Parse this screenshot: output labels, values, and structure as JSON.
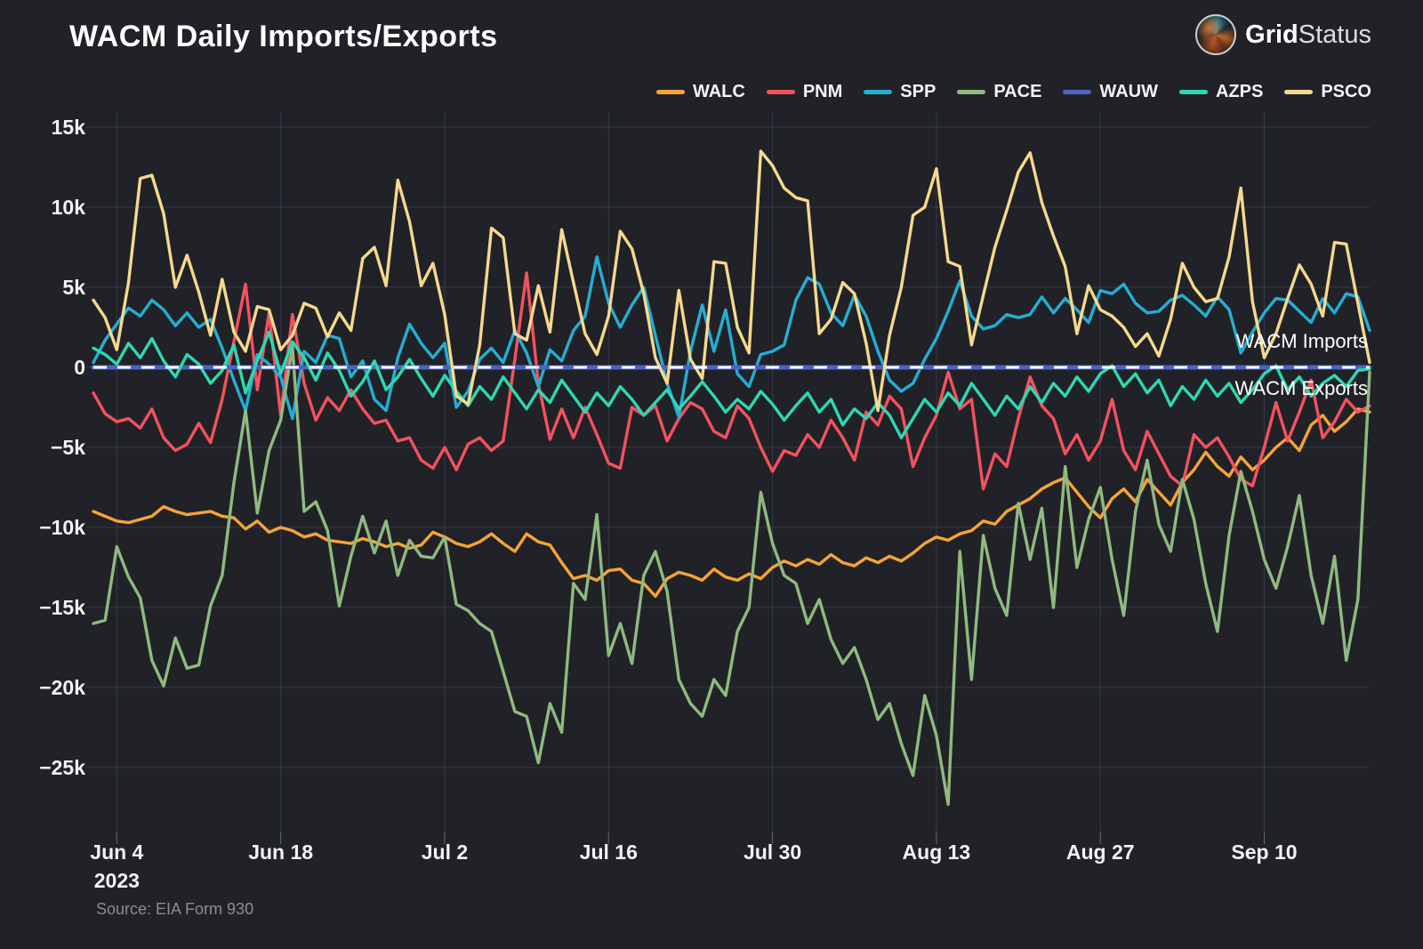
{
  "header": {
    "logo_bold": "Grid",
    "logo_light": "Status"
  },
  "annotations": {
    "imports": "WACM Imports",
    "exports": "WACM Exports"
  },
  "source": "Source: EIA Form 930",
  "chart_data": {
    "type": "line",
    "title": "WACM Daily Imports/Exports",
    "xlabel": "",
    "ylabel": "",
    "grid": true,
    "legend_position": "top-right",
    "background": "#212227",
    "x_start_date": "2023-06-02",
    "x_end_date": "2023-09-19",
    "ylim_k": [
      -29,
      16
    ],
    "y_unit_suffix": "k",
    "y_ticks": [
      {
        "label": "15k",
        "value_k": 15
      },
      {
        "label": "10k",
        "value_k": 10
      },
      {
        "label": "5k",
        "value_k": 5
      },
      {
        "label": "0",
        "value_k": 0
      },
      {
        "label": "−5k",
        "value_k": -5
      },
      {
        "label": "−10k",
        "value_k": -10
      },
      {
        "label": "−15k",
        "value_k": -15
      },
      {
        "label": "−20k",
        "value_k": -20
      },
      {
        "label": "−25k",
        "value_k": -25
      }
    ],
    "x_ticks": [
      {
        "day_index": 2,
        "label": "Jun 4",
        "sub": "2023"
      },
      {
        "day_index": 16,
        "label": "Jun 18"
      },
      {
        "day_index": 30,
        "label": "Jul 2"
      },
      {
        "day_index": 44,
        "label": "Jul 16"
      },
      {
        "day_index": 58,
        "label": "Jul 30"
      },
      {
        "day_index": 72,
        "label": "Aug 13"
      },
      {
        "day_index": 86,
        "label": "Aug 27"
      },
      {
        "day_index": 100,
        "label": "Sep 10"
      }
    ],
    "zero_line": {
      "value_k": 0,
      "color": "#ffffff",
      "style": "dashed"
    },
    "series": [
      {
        "name": "WALC",
        "color": "#f6a437",
        "values_k": [
          -9.0,
          -9.3,
          -9.6,
          -9.7,
          -9.5,
          -9.3,
          -8.7,
          -9.0,
          -9.2,
          -9.1,
          -9.0,
          -9.3,
          -9.4,
          -10.1,
          -9.6,
          -10.3,
          -10.0,
          -10.2,
          -10.6,
          -10.4,
          -10.8,
          -10.9,
          -11.0,
          -10.7,
          -10.9,
          -11.2,
          -11.0,
          -11.3,
          -11.1,
          -10.3,
          -10.6,
          -11.0,
          -11.2,
          -10.9,
          -10.4,
          -11.0,
          -11.5,
          -10.4,
          -10.9,
          -11.1,
          -12.2,
          -13.2,
          -13.0,
          -13.3,
          -12.7,
          -12.6,
          -13.3,
          -13.5,
          -14.3,
          -13.2,
          -12.8,
          -13.0,
          -13.3,
          -12.6,
          -13.1,
          -13.3,
          -12.9,
          -13.2,
          -12.5,
          -12.1,
          -12.4,
          -12.0,
          -12.3,
          -11.7,
          -12.2,
          -12.4,
          -11.9,
          -12.2,
          -11.8,
          -12.1,
          -11.6,
          -11.0,
          -10.6,
          -10.8,
          -10.4,
          -10.2,
          -9.6,
          -9.8,
          -9.0,
          -8.6,
          -8.2,
          -7.6,
          -7.2,
          -6.9,
          -7.8,
          -8.7,
          -9.4,
          -8.2,
          -7.6,
          -8.4,
          -7.0,
          -7.8,
          -8.6,
          -7.2,
          -6.4,
          -5.3,
          -6.2,
          -6.8,
          -5.6,
          -6.4,
          -5.8,
          -5.0,
          -4.4,
          -5.2,
          -3.6,
          -3.0,
          -4.0,
          -3.4,
          -2.6,
          -2.8
        ]
      },
      {
        "name": "PNM",
        "color": "#f4515f",
        "values_k": [
          -1.6,
          -2.9,
          -3.4,
          -3.2,
          -3.8,
          -2.6,
          -4.4,
          -5.2,
          -4.8,
          -3.5,
          -4.7,
          -2.0,
          1.6,
          5.2,
          -1.4,
          3.4,
          -3.0,
          3.3,
          -1.0,
          -3.3,
          -1.9,
          -2.7,
          -1.4,
          -2.6,
          -3.5,
          -3.3,
          -4.6,
          -4.4,
          -5.8,
          -6.3,
          -5.0,
          -6.4,
          -4.8,
          -4.4,
          -5.2,
          -4.6,
          0.5,
          5.9,
          -1.0,
          -4.5,
          -2.6,
          -4.4,
          -2.5,
          -4.2,
          -6.0,
          -6.3,
          -2.5,
          -3.0,
          -2.4,
          -4.6,
          -3.2,
          -2.2,
          -2.6,
          -4.0,
          -4.4,
          -2.4,
          -3.2,
          -5.0,
          -6.5,
          -5.2,
          -5.5,
          -4.2,
          -5.0,
          -3.3,
          -4.4,
          -5.8,
          -2.8,
          -3.6,
          -1.8,
          -2.6,
          -6.2,
          -4.4,
          -3.0,
          -0.3,
          -2.6,
          -2.0,
          -7.6,
          -5.4,
          -6.2,
          -3.2,
          -0.6,
          -2.4,
          -3.2,
          -5.4,
          -4.2,
          -5.8,
          -4.6,
          -2.0,
          -5.2,
          -6.4,
          -4.0,
          -5.4,
          -6.8,
          -7.4,
          -4.2,
          -5.0,
          -4.4,
          -5.6,
          -7.0,
          -7.4,
          -5.0,
          -2.2,
          -4.6,
          -2.8,
          -0.8,
          -4.4,
          -3.4,
          -2.0,
          -2.8,
          -2.4
        ]
      },
      {
        "name": "SPP",
        "color": "#24aed4",
        "values_k": [
          0.3,
          1.7,
          2.7,
          3.7,
          3.2,
          4.2,
          3.6,
          2.6,
          3.4,
          2.5,
          3.0,
          1.2,
          -0.8,
          -2.7,
          0.8,
          0.2,
          -0.6,
          -3.2,
          1.0,
          0.3,
          2.0,
          1.8,
          -0.6,
          0.4,
          -2.0,
          -2.7,
          0.6,
          2.7,
          1.5,
          0.6,
          1.5,
          -2.5,
          -1.5,
          0.5,
          1.2,
          0.3,
          2.3,
          0.9,
          -1.2,
          1.1,
          0.4,
          2.3,
          3.2,
          6.9,
          4.0,
          2.5,
          3.9,
          5.0,
          2.0,
          -1.0,
          -3.1,
          1.0,
          3.9,
          1.0,
          3.6,
          -0.4,
          -1.2,
          0.8,
          1.0,
          1.4,
          4.2,
          5.6,
          5.2,
          3.4,
          2.6,
          4.5,
          3.2,
          1.0,
          -0.8,
          -1.5,
          -1.0,
          0.5,
          1.8,
          3.5,
          5.4,
          3.2,
          2.4,
          2.6,
          3.3,
          3.1,
          3.3,
          4.4,
          3.4,
          4.3,
          3.6,
          2.8,
          4.8,
          4.6,
          5.2,
          4.0,
          3.4,
          3.5,
          4.2,
          4.5,
          3.9,
          3.2,
          4.4,
          3.6,
          0.9,
          2.2,
          3.4,
          4.3,
          4.2,
          3.5,
          2.8,
          4.3,
          3.4,
          4.6,
          4.4,
          2.3
        ]
      },
      {
        "name": "PACE",
        "color": "#90ba80",
        "values_k": [
          -16.0,
          -15.8,
          -11.2,
          -13.1,
          -14.4,
          -18.3,
          -19.9,
          -16.9,
          -18.8,
          -18.6,
          -14.9,
          -13.0,
          -7.2,
          -2.7,
          -9.1,
          -5.2,
          -3.3,
          1.3,
          -9.0,
          -8.4,
          -10.2,
          -14.9,
          -11.8,
          -9.3,
          -11.6,
          -9.6,
          -13.0,
          -10.8,
          -11.8,
          -11.9,
          -10.6,
          -14.8,
          -15.2,
          -16.0,
          -16.5,
          -19.0,
          -21.5,
          -21.8,
          -24.7,
          -21.0,
          -22.8,
          -13.5,
          -14.5,
          -9.2,
          -18.0,
          -16.0,
          -18.5,
          -13.0,
          -11.5,
          -14.0,
          -19.5,
          -21.0,
          -21.8,
          -19.5,
          -20.5,
          -16.5,
          -15.0,
          -7.8,
          -11.0,
          -13.0,
          -13.5,
          -16.0,
          -14.5,
          -17.0,
          -18.5,
          -17.5,
          -19.5,
          -22.0,
          -21.0,
          -23.5,
          -25.5,
          -20.5,
          -23.0,
          -27.3,
          -11.5,
          -19.5,
          -10.5,
          -13.8,
          -15.5,
          -8.5,
          -12.0,
          -8.8,
          -15.0,
          -6.2,
          -12.5,
          -9.5,
          -7.5,
          -12.0,
          -15.5,
          -9.0,
          -5.8,
          -9.8,
          -11.5,
          -7.0,
          -9.5,
          -13.5,
          -16.5,
          -10.5,
          -6.5,
          -9.0,
          -12.0,
          -13.8,
          -11.2,
          -8.0,
          -13.0,
          -16.0,
          -11.8,
          -18.3,
          -14.5,
          -0.3
        ]
      },
      {
        "name": "WAUW",
        "color": "#4d63c4",
        "values_k": [
          0,
          0,
          0,
          0,
          0,
          0,
          0,
          0,
          0,
          0,
          0,
          0,
          0,
          0,
          0,
          0,
          0,
          0,
          0,
          0,
          0,
          0,
          0,
          0,
          0,
          0,
          0,
          0,
          0,
          0,
          0,
          0,
          0,
          0,
          0,
          0,
          0,
          0,
          0,
          0,
          0,
          0,
          0,
          0,
          0,
          0,
          0,
          0,
          0,
          0,
          0,
          0,
          0,
          0,
          0,
          0,
          0,
          0,
          0,
          0,
          0,
          0,
          0,
          0,
          0,
          0,
          0,
          0,
          0,
          0,
          0,
          0,
          0,
          0,
          0,
          0,
          0,
          0,
          0,
          0,
          0,
          0,
          0,
          0,
          0,
          0,
          0,
          0,
          0,
          0,
          0,
          0,
          0,
          0,
          0,
          0,
          0,
          0,
          0,
          0,
          0,
          0,
          0,
          0,
          0,
          0,
          0,
          0,
          0,
          0
        ]
      },
      {
        "name": "AZPS",
        "color": "#2fd8b1",
        "values_k": [
          1.2,
          0.8,
          0.2,
          1.5,
          0.6,
          1.8,
          0.4,
          -0.6,
          0.8,
          0.2,
          -1.0,
          -0.2,
          1.4,
          -1.6,
          0.4,
          2.2,
          -0.4,
          1.6,
          0.6,
          -0.8,
          0.9,
          -0.2,
          -1.8,
          -0.9,
          0.4,
          -1.4,
          -0.6,
          0.5,
          -0.7,
          -1.8,
          -0.5,
          -1.5,
          -2.4,
          -1.2,
          -2.0,
          -0.6,
          -1.6,
          -2.6,
          -1.4,
          -2.2,
          -0.8,
          -1.8,
          -2.8,
          -1.6,
          -2.4,
          -1.2,
          -2.0,
          -3.0,
          -2.2,
          -1.4,
          -2.6,
          -1.8,
          -0.9,
          -1.8,
          -2.8,
          -2.0,
          -2.6,
          -1.5,
          -2.3,
          -3.3,
          -2.4,
          -1.6,
          -2.8,
          -2.0,
          -3.6,
          -2.6,
          -3.2,
          -2.2,
          -3.0,
          -4.4,
          -3.2,
          -2.0,
          -2.8,
          -1.6,
          -2.4,
          -1.0,
          -2.0,
          -3.0,
          -1.8,
          -2.6,
          -1.2,
          -2.2,
          -1.0,
          -1.8,
          -0.6,
          -1.5,
          -0.4,
          0.1,
          -1.2,
          -0.4,
          -1.6,
          -0.8,
          -2.4,
          -1.2,
          -2.0,
          -0.8,
          -1.8,
          -1.0,
          -2.2,
          -1.4,
          -0.4,
          0.1,
          -1.4,
          -0.6,
          -1.8,
          -1.0,
          -0.5,
          -1.2,
          -0.2,
          -0.1
        ]
      },
      {
        "name": "PSCO",
        "color": "#f6d98e",
        "values_k": [
          4.2,
          3.1,
          1.1,
          5.3,
          11.8,
          12.0,
          9.6,
          5.0,
          7.0,
          4.7,
          2.0,
          5.5,
          2.2,
          1.0,
          3.8,
          3.6,
          1.1,
          2.0,
          4.0,
          3.7,
          1.9,
          3.4,
          2.3,
          6.8,
          7.5,
          5.1,
          11.7,
          9.1,
          5.1,
          6.5,
          3.3,
          -1.8,
          -2.3,
          1.4,
          8.7,
          8.1,
          2.1,
          1.7,
          5.1,
          2.2,
          8.6,
          5.3,
          2.1,
          0.8,
          3.2,
          8.5,
          7.4,
          4.6,
          0.6,
          -1.0,
          4.8,
          0.5,
          -0.7,
          6.6,
          6.5,
          2.5,
          0.9,
          13.5,
          12.6,
          11.2,
          10.6,
          10.4,
          2.1,
          3.0,
          5.3,
          4.6,
          1.5,
          -2.7,
          2.0,
          5.0,
          9.5,
          10.0,
          12.4,
          6.6,
          6.3,
          1.4,
          4.5,
          7.5,
          9.8,
          12.2,
          13.4,
          10.3,
          8.2,
          6.3,
          2.1,
          5.1,
          3.6,
          3.2,
          2.5,
          1.3,
          2.1,
          0.7,
          3.0,
          6.5,
          5.0,
          4.1,
          4.3,
          6.9,
          11.2,
          4.1,
          0.6,
          2.1,
          4.3,
          6.4,
          5.2,
          3.2,
          7.8,
          7.7,
          4.0,
          0.3
        ]
      }
    ]
  }
}
